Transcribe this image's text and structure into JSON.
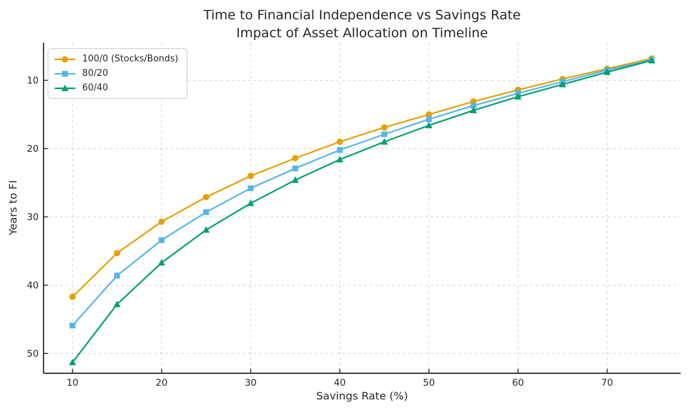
{
  "figure": {
    "background": "#ffffff"
  },
  "style": {
    "text_color": "#262626",
    "spine_color": "#262626",
    "grid_color": "#cccccc",
    "legend_border_color": "#cccccc",
    "legend_background": "rgba(255,255,255,0.92)"
  },
  "chart_data": {
    "type": "line",
    "title": "Time to Financial Independence vs Savings Rate",
    "subtitle": "Impact of Asset Allocation on Timeline",
    "xlabel": "Savings Rate (%)",
    "ylabel": "Years to FI",
    "x": [
      10,
      15,
      20,
      25,
      30,
      35,
      40,
      45,
      50,
      55,
      60,
      65,
      70,
      75
    ],
    "series": [
      {
        "name": "100/0 (Stocks/Bonds)",
        "color": "#E69F00",
        "marker": "circle",
        "values": [
          41.7,
          35.3,
          30.7,
          27.1,
          24.0,
          21.4,
          19.0,
          16.9,
          15.0,
          13.1,
          11.4,
          9.8,
          8.3,
          6.8
        ]
      },
      {
        "name": "80/20",
        "color": "#56B4E9",
        "marker": "square",
        "values": [
          45.9,
          38.6,
          33.4,
          29.3,
          25.8,
          22.9,
          20.2,
          17.9,
          15.7,
          13.7,
          11.9,
          10.2,
          8.5,
          7.0
        ]
      },
      {
        "name": "60/40",
        "color": "#009E73",
        "marker": "triangle",
        "values": [
          51.3,
          42.8,
          36.7,
          31.9,
          28.0,
          24.6,
          21.6,
          19.0,
          16.6,
          14.4,
          12.4,
          10.6,
          8.8,
          7.1
        ]
      }
    ],
    "x_ticks": [
      10,
      20,
      30,
      40,
      50,
      60,
      70
    ],
    "y_ticks": [
      10,
      20,
      30,
      40,
      50
    ],
    "xlim": [
      6.75,
      78.25
    ],
    "ylim": [
      4.5,
      52.9
    ],
    "y_axis_inverted": true,
    "grid": true,
    "grid_style": "dashed",
    "tick_direction": "in",
    "legend_position": "upper-left"
  }
}
